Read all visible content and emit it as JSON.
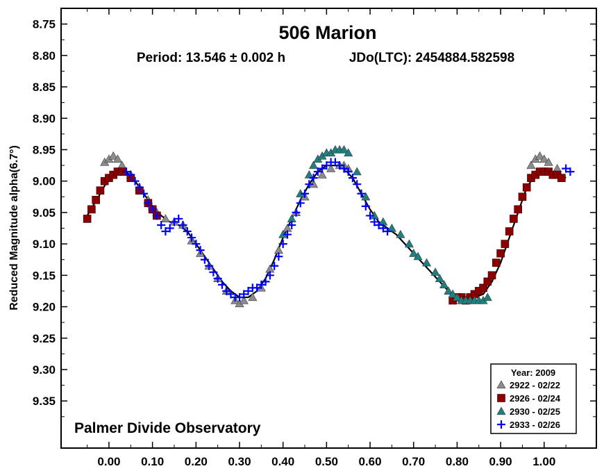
{
  "chart_data": {
    "type": "scatter",
    "title": "506 Marion",
    "subtitle_period": "Period: 13.546 ± 0.002 h",
    "subtitle_epoch": "JDo(LTC): 2454884.582598",
    "ylabel": "Reduced Magnitude alpha(6.7°)",
    "xlabel": "",
    "credit": "Palmer Divide Observatory",
    "x_range": [
      -0.11,
      1.12
    ],
    "y_range": [
      8.725,
      9.425
    ],
    "y_inverted": true,
    "grid": false,
    "x_ticks": [
      "0.00",
      "0.10",
      "0.20",
      "0.30",
      "0.40",
      "0.50",
      "0.60",
      "0.70",
      "0.80",
      "0.90",
      "1.00"
    ],
    "y_ticks": [
      "8.75",
      "8.80",
      "8.85",
      "8.90",
      "8.95",
      "9.00",
      "9.05",
      "9.10",
      "9.15",
      "9.20",
      "9.25",
      "9.30",
      "9.35"
    ],
    "legend": {
      "placement": "bottom-right",
      "title": "Year: 2009",
      "entries": [
        {
          "label": "2922 - 02/22",
          "marker": "triangle",
          "color": "#8c8c8c"
        },
        {
          "label": "2926 - 02/24",
          "marker": "square",
          "color": "#8b0000"
        },
        {
          "label": "2930 - 02/25",
          "marker": "triangle",
          "color": "#1f8080"
        },
        {
          "label": "2933 - 02/26",
          "marker": "plus",
          "color": "#0000ff"
        }
      ]
    },
    "fit_curve": {
      "color": "#000000",
      "x": [
        -0.05,
        -0.02,
        0.0,
        0.02,
        0.04,
        0.06,
        0.08,
        0.1,
        0.12,
        0.14,
        0.16,
        0.18,
        0.2,
        0.22,
        0.24,
        0.26,
        0.28,
        0.3,
        0.32,
        0.34,
        0.36,
        0.38,
        0.4,
        0.42,
        0.44,
        0.46,
        0.48,
        0.5,
        0.52,
        0.54,
        0.56,
        0.58,
        0.6,
        0.62,
        0.64,
        0.66,
        0.68,
        0.7,
        0.72,
        0.74,
        0.76,
        0.78,
        0.8,
        0.82,
        0.84,
        0.86,
        0.88,
        0.9,
        0.92,
        0.94,
        0.96,
        0.98,
        1.0,
        1.02,
        1.04,
        1.05
      ],
      "y": [
        9.055,
        9.02,
        8.995,
        8.98,
        8.985,
        9.0,
        9.02,
        9.04,
        9.055,
        9.065,
        9.07,
        9.08,
        9.1,
        9.12,
        9.14,
        9.16,
        9.175,
        9.185,
        9.185,
        9.175,
        9.155,
        9.125,
        9.09,
        9.06,
        9.03,
        9.005,
        8.985,
        8.975,
        8.975,
        8.98,
        8.995,
        9.02,
        9.045,
        9.065,
        9.075,
        9.085,
        9.1,
        9.115,
        9.13,
        9.145,
        9.16,
        9.175,
        9.185,
        9.185,
        9.185,
        9.18,
        9.16,
        9.13,
        9.09,
        9.05,
        9.01,
        8.99,
        8.98,
        8.985,
        8.99,
        8.995
      ]
    },
    "series": [
      {
        "name": "2922 - 02/22",
        "marker": "triangle",
        "color": "#8c8c8c",
        "x": [
          -0.01,
          0.0,
          0.01,
          0.02,
          0.03,
          0.05,
          0.07,
          0.09,
          0.11,
          0.13,
          0.15,
          0.17,
          0.19,
          0.21,
          0.23,
          0.25,
          0.27,
          0.29,
          0.3,
          0.31,
          0.33,
          0.35,
          0.37,
          0.39,
          0.41,
          0.43,
          0.45,
          0.47,
          0.49,
          0.51,
          0.53,
          0.54,
          0.55,
          0.97,
          0.98,
          0.99,
          1.0,
          1.01,
          1.03
        ],
        "y": [
          8.97,
          8.965,
          8.96,
          8.965,
          8.975,
          8.99,
          9.01,
          9.03,
          9.05,
          9.06,
          9.065,
          9.07,
          9.095,
          9.115,
          9.135,
          9.155,
          9.175,
          9.19,
          9.195,
          9.19,
          9.185,
          9.17,
          9.14,
          9.11,
          9.075,
          9.05,
          9.025,
          9.005,
          8.99,
          8.98,
          8.975,
          8.975,
          8.98,
          8.975,
          8.965,
          8.96,
          8.965,
          8.97,
          8.98
        ]
      },
      {
        "name": "2926 - 02/24",
        "marker": "square",
        "color": "#8b0000",
        "x": [
          -0.05,
          -0.04,
          -0.03,
          -0.02,
          -0.01,
          0.0,
          0.01,
          0.02,
          0.03,
          0.05,
          0.07,
          0.09,
          0.1,
          0.11,
          0.79,
          0.8,
          0.81,
          0.82,
          0.83,
          0.84,
          0.85,
          0.86,
          0.87,
          0.88,
          0.89,
          0.9,
          0.91,
          0.92,
          0.93,
          0.94,
          0.95,
          0.96,
          0.97,
          0.98,
          0.99,
          1.0,
          1.01,
          1.02,
          1.03,
          1.04
        ],
        "y": [
          9.06,
          9.045,
          9.03,
          9.015,
          9.0,
          8.995,
          8.99,
          8.985,
          8.985,
          8.995,
          9.015,
          9.035,
          9.045,
          9.055,
          9.19,
          9.185,
          9.185,
          9.19,
          9.185,
          9.18,
          9.175,
          9.17,
          9.16,
          9.15,
          9.13,
          9.115,
          9.1,
          9.08,
          9.06,
          9.045,
          9.025,
          9.01,
          8.995,
          8.99,
          8.985,
          8.985,
          8.985,
          8.99,
          8.99,
          8.995
        ]
      },
      {
        "name": "2930 - 02/25",
        "marker": "triangle",
        "color": "#1f8080",
        "x": [
          0.4,
          0.42,
          0.44,
          0.46,
          0.47,
          0.48,
          0.49,
          0.5,
          0.51,
          0.52,
          0.53,
          0.54,
          0.55,
          0.57,
          0.59,
          0.61,
          0.63,
          0.65,
          0.67,
          0.69,
          0.7,
          0.71,
          0.73,
          0.75,
          0.76,
          0.77,
          0.78,
          0.79,
          0.8,
          0.81,
          0.82,
          0.83,
          0.84,
          0.85,
          0.86,
          0.87
        ],
        "y": [
          9.085,
          9.06,
          9.02,
          8.99,
          8.975,
          8.965,
          8.96,
          8.955,
          8.955,
          8.95,
          8.95,
          8.95,
          8.955,
          8.985,
          9.025,
          9.055,
          9.065,
          9.075,
          9.085,
          9.1,
          9.115,
          9.12,
          9.13,
          9.145,
          9.155,
          9.165,
          9.175,
          9.18,
          9.185,
          9.19,
          9.19,
          9.19,
          9.19,
          9.19,
          9.19,
          9.185
        ]
      },
      {
        "name": "2933 - 02/26",
        "marker": "plus",
        "color": "#0000ff",
        "x": [
          0.04,
          0.05,
          0.06,
          0.07,
          0.08,
          0.09,
          0.1,
          0.11,
          0.12,
          0.13,
          0.14,
          0.15,
          0.16,
          0.17,
          0.18,
          0.19,
          0.2,
          0.21,
          0.22,
          0.23,
          0.24,
          0.25,
          0.26,
          0.27,
          0.28,
          0.29,
          0.3,
          0.31,
          0.32,
          0.33,
          0.34,
          0.35,
          0.36,
          0.37,
          0.38,
          0.39,
          0.4,
          0.41,
          0.42,
          0.43,
          0.44,
          0.45,
          0.46,
          0.47,
          0.48,
          0.49,
          0.5,
          0.51,
          0.52,
          0.53,
          0.54,
          0.55,
          0.56,
          0.57,
          0.58,
          0.59,
          0.6,
          0.61,
          0.62,
          0.63,
          0.64,
          1.05,
          1.06
        ],
        "y": [
          8.985,
          8.99,
          9.0,
          9.01,
          9.02,
          9.035,
          9.045,
          9.055,
          9.07,
          9.08,
          9.075,
          9.065,
          9.06,
          9.07,
          9.08,
          9.09,
          9.1,
          9.11,
          9.125,
          9.135,
          9.145,
          9.155,
          9.165,
          9.175,
          9.18,
          9.185,
          9.185,
          9.18,
          9.175,
          9.17,
          9.17,
          9.165,
          9.16,
          9.15,
          9.135,
          9.12,
          9.1,
          9.085,
          9.07,
          9.05,
          9.035,
          9.02,
          9.005,
          8.995,
          8.985,
          8.98,
          8.975,
          8.97,
          8.97,
          8.975,
          8.98,
          8.985,
          8.995,
          9.005,
          9.02,
          9.04,
          9.055,
          9.065,
          9.07,
          9.075,
          9.08,
          8.98,
          8.985
        ]
      }
    ]
  }
}
